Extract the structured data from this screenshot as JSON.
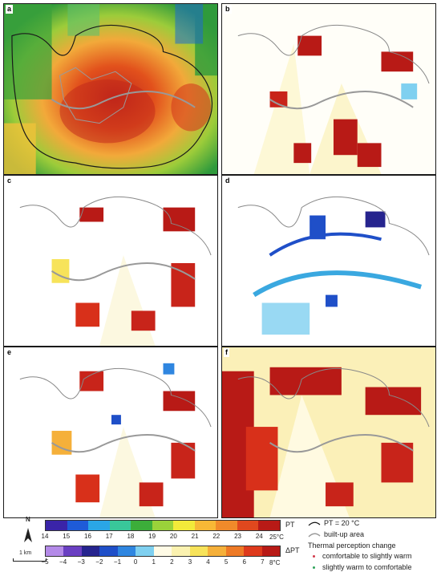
{
  "panels": [
    {
      "id": "a",
      "label": "a"
    },
    {
      "id": "b",
      "label": "b"
    },
    {
      "id": "c",
      "label": "c"
    },
    {
      "id": "d",
      "label": "d"
    },
    {
      "id": "e",
      "label": "e"
    },
    {
      "id": "f",
      "label": "f"
    }
  ],
  "legend": {
    "north": "N",
    "scale_bar": "1 km",
    "pt_label": "PT",
    "pt_unit": "25°C",
    "pt_ticks": [
      "14",
      "15",
      "16",
      "17",
      "18",
      "19",
      "20",
      "21",
      "22",
      "23",
      "24"
    ],
    "pt_colors": [
      "#3a24a8",
      "#1e5bd8",
      "#2aa6e6",
      "#39c79a",
      "#3cad3a",
      "#9ad23a",
      "#f2ea3a",
      "#f7b836",
      "#f08a2a",
      "#e0481e",
      "#b81a16"
    ],
    "dpt_label": "ΔPT",
    "dpt_unit": "8°C",
    "dpt_ticks": [
      "−5",
      "−4",
      "−3",
      "−2",
      "−1",
      "0",
      "1",
      "2",
      "3",
      "4",
      "5",
      "6",
      "7"
    ],
    "dpt_colors": [
      "#b48ae8",
      "#6a3fc2",
      "#26248e",
      "#1f4fc8",
      "#2f86e0",
      "#7fd0f0",
      "#fffbe6",
      "#fbf2b0",
      "#f7e35a",
      "#f5b03a",
      "#ee7a26",
      "#de3a1c",
      "#b81a16"
    ],
    "contour_label": "PT = 20 °C",
    "builtup_label": "built-up area",
    "change_title": "Thermal perception change",
    "change_warm": "comfortable to slightly warm",
    "change_cool": "slightly warm to comfortable",
    "warm_dot_color": "#d23a4a",
    "cool_dot_color": "#2fa35a"
  }
}
